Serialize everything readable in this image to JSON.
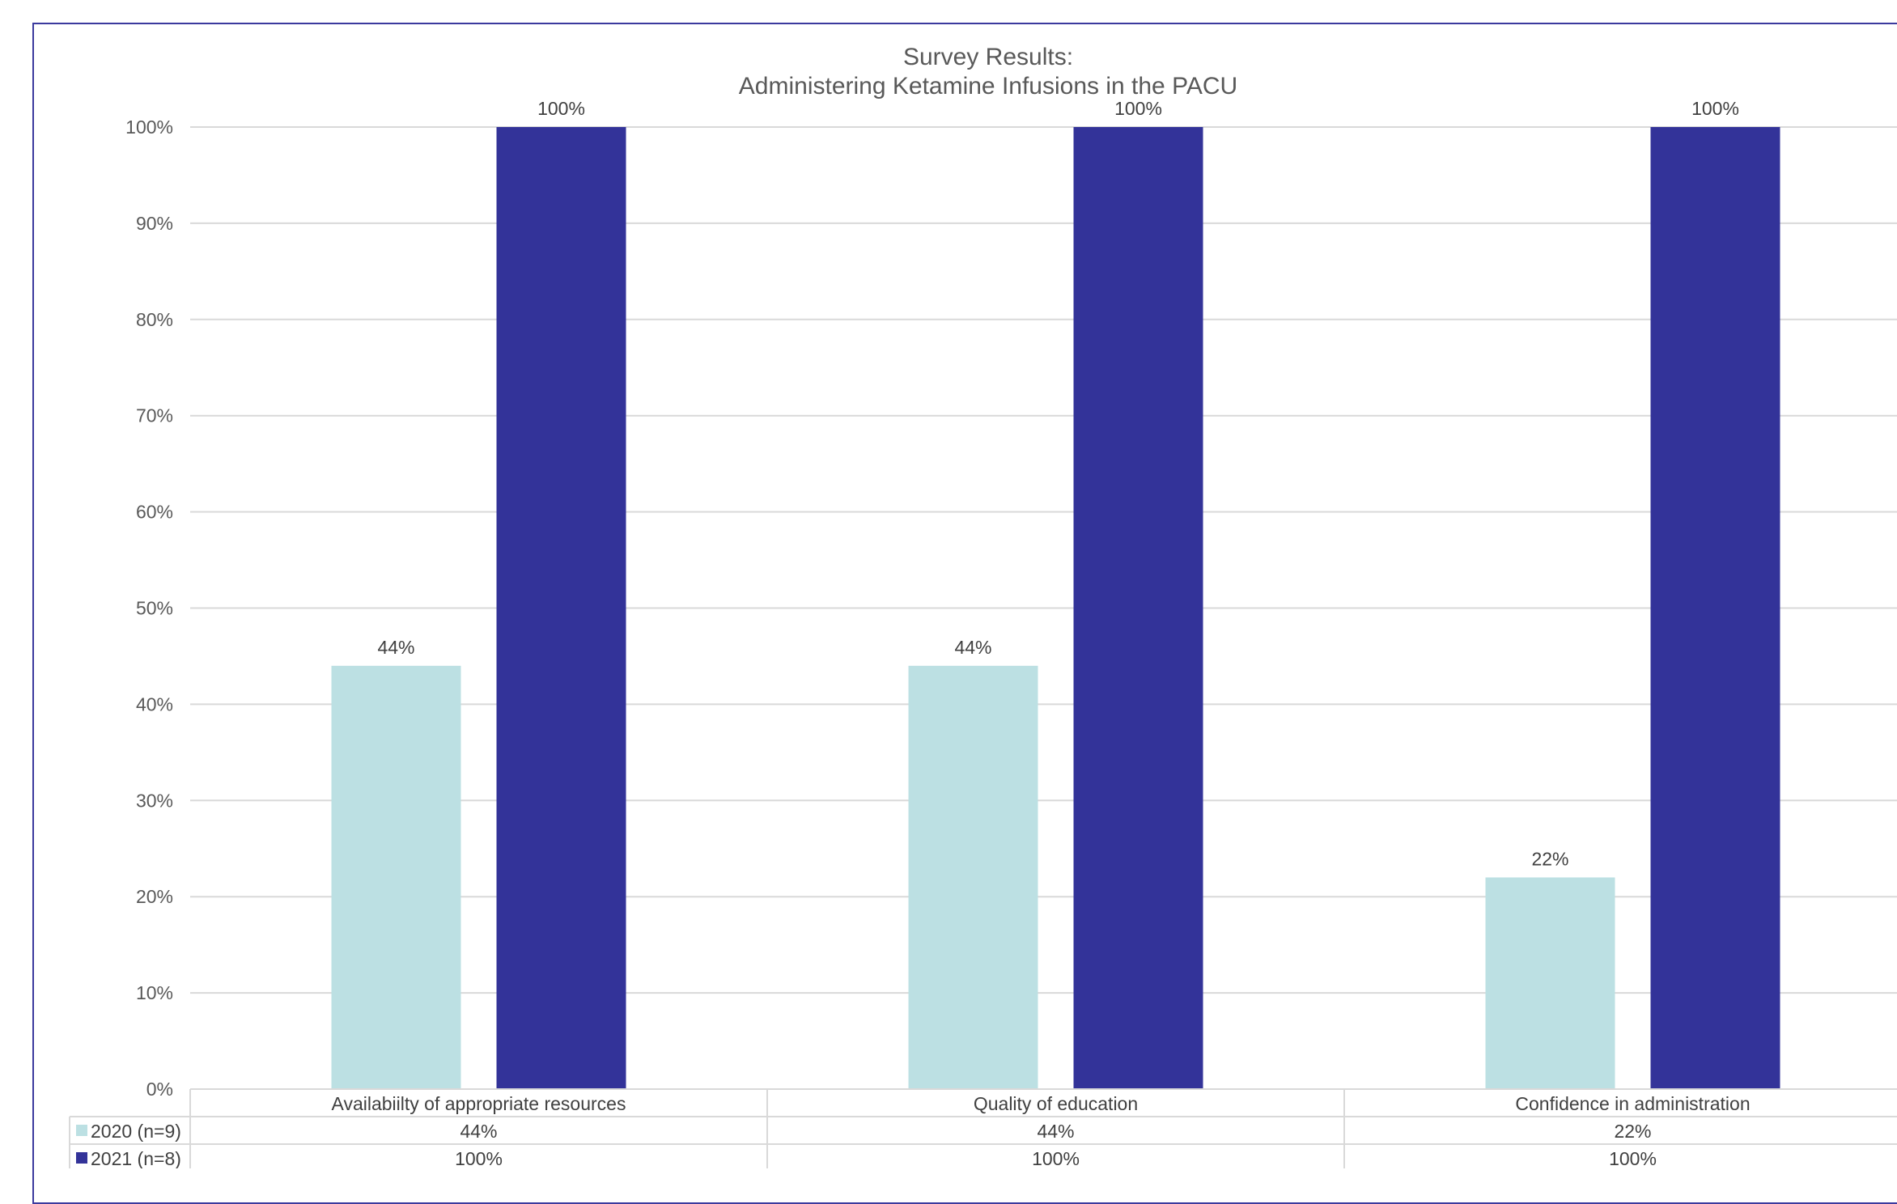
{
  "chart_data": {
    "type": "bar",
    "title": [
      "Survey Results:",
      "Administering Ketamine Infusions in the PACU"
    ],
    "categories": [
      "Availabiilty of appropriate resources",
      "Quality of education",
      "Confidence in administration"
    ],
    "series": [
      {
        "name": "2020 (n=9)",
        "values": [
          44,
          44,
          22
        ],
        "labels": [
          "44%",
          "44%",
          "22%"
        ],
        "color": "#bce0e3"
      },
      {
        "name": "2021 (n=8)",
        "values": [
          100,
          100,
          100
        ],
        "labels": [
          "100%",
          "100%",
          "100%"
        ],
        "color": "#333399"
      }
    ],
    "ylim": [
      0,
      100
    ],
    "yticks": [
      0,
      10,
      20,
      30,
      40,
      50,
      60,
      70,
      80,
      90,
      100
    ],
    "ytick_labels": [
      "0%",
      "10%",
      "20%",
      "30%",
      "40%",
      "50%",
      "60%",
      "70%",
      "80%",
      "90%",
      "100%"
    ],
    "grid": true,
    "legend": "data table below chart",
    "data_table": true
  }
}
